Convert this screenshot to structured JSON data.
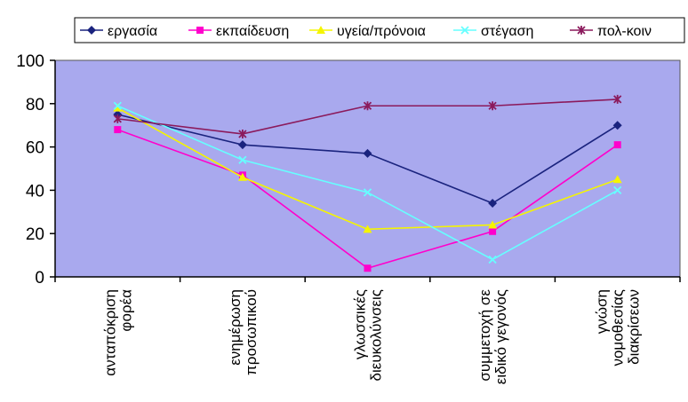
{
  "chart_data": {
    "type": "line",
    "categories": [
      [
        "ανταπόκριση",
        "φορέα"
      ],
      [
        "ενημέρωση",
        "προσωπικού"
      ],
      [
        "γλωσσικές",
        "διευκολύνσεις"
      ],
      [
        "συμμετοχή σε",
        "ειδικό γεγονός"
      ],
      [
        "γνώση",
        "νομοθεσίας",
        "διακρίσεων"
      ]
    ],
    "ylim": [
      0,
      100
    ],
    "yticks": [
      0,
      20,
      40,
      60,
      80,
      100
    ],
    "grid": false,
    "legend_position": "top",
    "plot_background": "#a9a9ee",
    "series": [
      {
        "name": "εργασία",
        "color": "#1a237e",
        "marker": "diamond",
        "values": [
          75,
          61,
          57,
          34,
          70
        ]
      },
      {
        "name": "εκπαίδευση",
        "color": "#ff00cc",
        "marker": "square",
        "values": [
          68,
          47,
          4,
          21,
          61
        ]
      },
      {
        "name": "υγεία/πρόνοια",
        "color": "#f5f500",
        "marker": "triangle",
        "values": [
          78,
          46,
          22,
          24,
          45
        ]
      },
      {
        "name": "στέγαση",
        "color": "#66ffff",
        "marker": "x",
        "values": [
          79,
          54,
          39,
          8,
          40
        ]
      },
      {
        "name": "πολ-κοιν",
        "color": "#8b1a5c",
        "marker": "star",
        "values": [
          73,
          66,
          79,
          79,
          82
        ]
      }
    ]
  }
}
